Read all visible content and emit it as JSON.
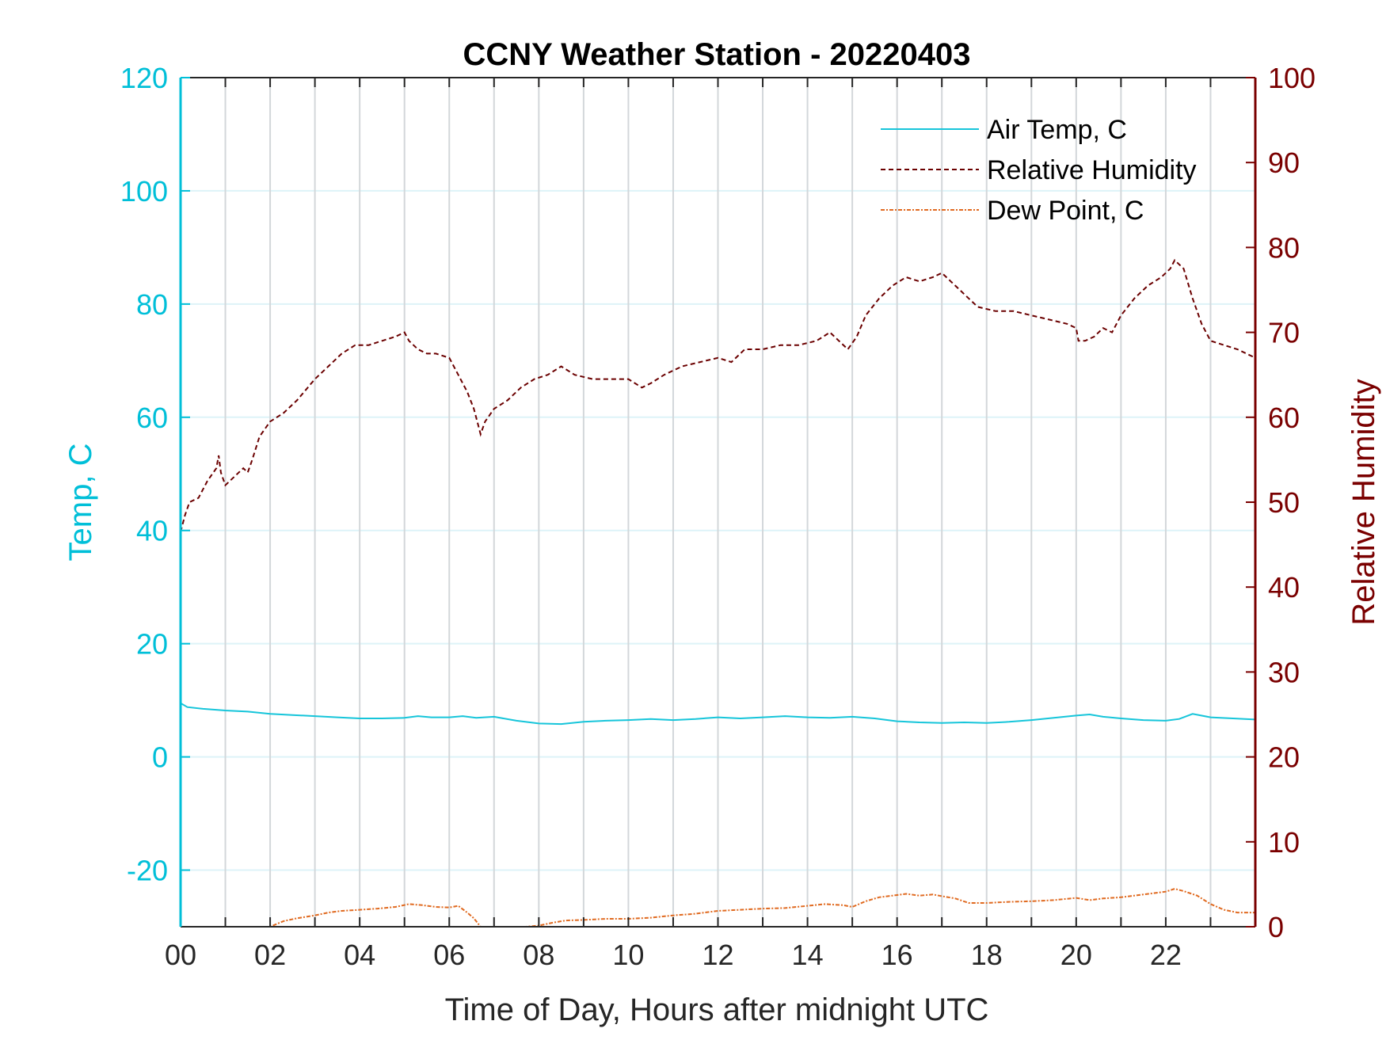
{
  "chart_data": {
    "type": "line",
    "title": "CCNY Weather Station - 20220403",
    "xlabel": "Time of Day, Hours after midnight UTC",
    "ylabel_left": "Temp, C",
    "ylabel_right": "Relative Humidity",
    "xlim": [
      0,
      24
    ],
    "ylim_left": [
      -30,
      120
    ],
    "ylim_right": [
      0,
      100
    ],
    "x_ticks": [
      0,
      2,
      4,
      6,
      8,
      10,
      12,
      14,
      16,
      18,
      20,
      22
    ],
    "x_tick_labels": [
      "00",
      "02",
      "04",
      "06",
      "08",
      "10",
      "12",
      "14",
      "16",
      "18",
      "20",
      "22"
    ],
    "y_left_ticks": [
      -20,
      0,
      20,
      40,
      60,
      80,
      100,
      120
    ],
    "y_right_ticks": [
      0,
      10,
      20,
      30,
      40,
      50,
      60,
      70,
      80,
      90,
      100
    ],
    "grid": true,
    "legend_position": "top-right",
    "colors": {
      "left_axis": "#00BFD8",
      "right_axis": "#7A0000",
      "air_temp": "#16C5DA",
      "humidity": "#6B0000",
      "dew_point": "#E06A20",
      "vgrid": "#D3D7DA",
      "hgrid": "#DDF3F8"
    },
    "series": [
      {
        "name": "Air Temp, C",
        "axis": "left",
        "style": "solid",
        "x": [
          0,
          0.15,
          0.5,
          1,
          1.5,
          2,
          2.5,
          3,
          3.5,
          4,
          4.5,
          5,
          5.3,
          5.6,
          6,
          6.3,
          6.6,
          7,
          7.5,
          8,
          8.5,
          9,
          9.5,
          10,
          10.5,
          11,
          11.5,
          12,
          12.5,
          13,
          13.5,
          14,
          14.5,
          15,
          15.5,
          16,
          16.5,
          17,
          17.5,
          18,
          18.5,
          19,
          19.5,
          20,
          20.3,
          20.6,
          21,
          21.5,
          22,
          22.3,
          22.6,
          23,
          23.5,
          24
        ],
        "y": [
          9.5,
          8.8,
          8.5,
          8.2,
          8.0,
          7.6,
          7.4,
          7.2,
          7.0,
          6.8,
          6.8,
          6.9,
          7.2,
          7.0,
          7.0,
          7.2,
          6.9,
          7.1,
          6.4,
          5.9,
          5.8,
          6.2,
          6.4,
          6.5,
          6.7,
          6.5,
          6.7,
          7.0,
          6.8,
          7.0,
          7.2,
          7.0,
          6.9,
          7.1,
          6.8,
          6.3,
          6.1,
          6.0,
          6.1,
          6.0,
          6.2,
          6.5,
          6.9,
          7.3,
          7.5,
          7.1,
          6.8,
          6.5,
          6.4,
          6.7,
          7.6,
          7.0,
          6.8,
          6.6
        ]
      },
      {
        "name": "Relative Humidity",
        "axis": "right",
        "style": "dashed",
        "x": [
          0,
          0.1,
          0.2,
          0.4,
          0.6,
          0.8,
          0.85,
          0.9,
          1.0,
          1.2,
          1.4,
          1.5,
          1.6,
          1.75,
          1.8,
          2.0,
          2.3,
          2.6,
          3.0,
          3.3,
          3.6,
          3.9,
          4.2,
          4.5,
          4.8,
          5.0,
          5.1,
          5.3,
          5.5,
          5.7,
          6.0,
          6.2,
          6.4,
          6.55,
          6.65,
          6.7,
          6.8,
          7.0,
          7.3,
          7.6,
          7.9,
          8.2,
          8.5,
          8.8,
          9.2,
          9.6,
          10.0,
          10.3,
          10.5,
          10.8,
          11.2,
          11.6,
          12.0,
          12.3,
          12.6,
          13.0,
          13.4,
          13.8,
          14.2,
          14.5,
          14.7,
          14.9,
          15.1,
          15.3,
          15.6,
          15.9,
          16.2,
          16.5,
          16.8,
          17.0,
          17.2,
          17.5,
          17.8,
          18.2,
          18.6,
          19.0,
          19.4,
          19.8,
          20.0,
          20.05,
          20.2,
          20.4,
          20.6,
          20.8,
          21.0,
          21.3,
          21.6,
          21.9,
          22.1,
          22.2,
          22.4,
          22.6,
          22.8,
          23.0,
          23.3,
          23.6,
          23.8,
          24.0
        ],
        "y": [
          46.5,
          48.5,
          50.0,
          50.5,
          52.5,
          54.0,
          55.5,
          53.5,
          52.0,
          53.0,
          54.0,
          53.5,
          55.0,
          57.5,
          58.0,
          59.5,
          60.5,
          62.0,
          64.5,
          66.0,
          67.5,
          68.5,
          68.5,
          69.0,
          69.5,
          70.0,
          69.0,
          68.0,
          67.5,
          67.5,
          67.0,
          65.0,
          63.0,
          61.0,
          59.0,
          58.0,
          59.5,
          61.0,
          62.0,
          63.5,
          64.5,
          65.0,
          66.0,
          65.0,
          64.5,
          64.5,
          64.5,
          63.5,
          64.0,
          65.0,
          66.0,
          66.5,
          67.0,
          66.5,
          68.0,
          68.0,
          68.5,
          68.5,
          69.0,
          70.0,
          69.0,
          68.0,
          69.5,
          72.0,
          74.0,
          75.5,
          76.5,
          76.0,
          76.5,
          77.0,
          76.0,
          74.5,
          73.0,
          72.5,
          72.5,
          72.0,
          71.5,
          71.0,
          70.5,
          69.0,
          69.0,
          69.5,
          70.5,
          70.0,
          72.0,
          74.0,
          75.5,
          76.5,
          77.5,
          78.5,
          77.5,
          74.0,
          71.0,
          69.0,
          68.5,
          68.0,
          67.5,
          67.0
        ]
      },
      {
        "name": "Dew Point, C",
        "axis": "left",
        "style": "dash-dot",
        "x": [
          1.5,
          1.7,
          2.0,
          2.3,
          2.6,
          3.0,
          3.3,
          3.6,
          4.0,
          4.4,
          4.8,
          5.1,
          5.4,
          5.7,
          6.0,
          6.2,
          6.4,
          6.55,
          6.7,
          7.5,
          7.7,
          8.0,
          8.3,
          8.6,
          9.0,
          9.5,
          10.0,
          10.5,
          11.0,
          11.5,
          12.0,
          12.5,
          13.0,
          13.5,
          14.0,
          14.4,
          14.8,
          15.0,
          15.3,
          15.6,
          15.9,
          16.2,
          16.5,
          16.8,
          17.0,
          17.3,
          17.6,
          18.0,
          18.5,
          19.0,
          19.5,
          20.0,
          20.3,
          20.6,
          21.0,
          21.5,
          22.0,
          22.2,
          22.4,
          22.7,
          23.0,
          23.3,
          23.6,
          24.0
        ],
        "y": [
          -31.0,
          -30.5,
          -30.0,
          -29.0,
          -28.5,
          -28.0,
          -27.5,
          -27.2,
          -27.0,
          -26.8,
          -26.5,
          -26.0,
          -26.2,
          -26.5,
          -26.6,
          -26.3,
          -27.5,
          -28.5,
          -30.0,
          -30.2,
          -30.0,
          -29.8,
          -29.3,
          -28.9,
          -28.8,
          -28.6,
          -28.6,
          -28.4,
          -28.0,
          -27.7,
          -27.2,
          -27.0,
          -26.8,
          -26.7,
          -26.3,
          -26.0,
          -26.2,
          -26.5,
          -25.5,
          -24.8,
          -24.5,
          -24.2,
          -24.5,
          -24.3,
          -24.6,
          -25.0,
          -25.8,
          -25.8,
          -25.6,
          -25.5,
          -25.3,
          -24.9,
          -25.3,
          -25.0,
          -24.8,
          -24.3,
          -23.8,
          -23.3,
          -23.7,
          -24.5,
          -26.0,
          -27.0,
          -27.5,
          -27.5
        ]
      }
    ]
  }
}
